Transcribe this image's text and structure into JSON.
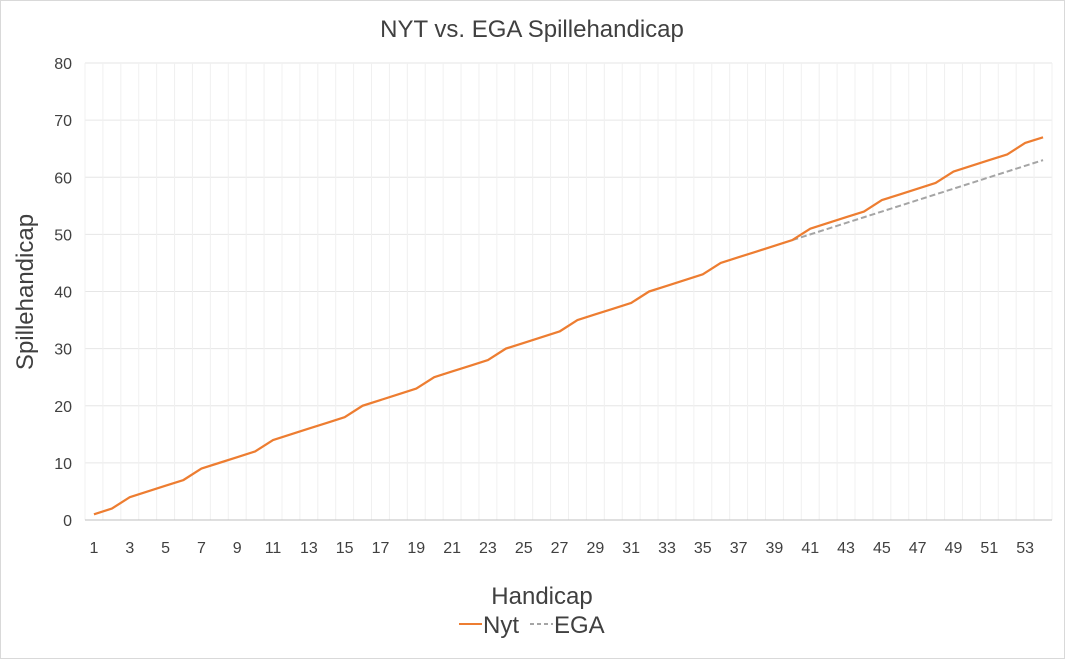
{
  "chart_data": {
    "type": "line",
    "title": "NYT vs. EGA Spillehandicap",
    "xlabel": "Handicap",
    "ylabel": "Spillehandicap",
    "ylim": [
      0,
      80
    ],
    "yticks": [
      0,
      10,
      20,
      30,
      40,
      50,
      60,
      70,
      80
    ],
    "x": [
      1,
      2,
      3,
      4,
      5,
      6,
      7,
      8,
      9,
      10,
      11,
      12,
      13,
      14,
      15,
      16,
      17,
      18,
      19,
      20,
      21,
      22,
      23,
      24,
      25,
      26,
      27,
      28,
      29,
      30,
      31,
      32,
      33,
      34,
      35,
      36,
      37,
      38,
      39,
      40,
      41,
      42,
      43,
      44,
      45,
      46,
      47,
      48,
      49,
      50,
      51,
      52,
      53,
      54
    ],
    "xtick_labels": [
      "1",
      "3",
      "5",
      "7",
      "9",
      "11",
      "13",
      "15",
      "17",
      "19",
      "21",
      "23",
      "25",
      "27",
      "29",
      "31",
      "33",
      "35",
      "37",
      "39",
      "41",
      "43",
      "45",
      "47",
      "49",
      "51",
      "53"
    ],
    "series": [
      {
        "name": "Nyt",
        "color": "#ED7D31",
        "style": "solid",
        "values": [
          1,
          2,
          4,
          5,
          6,
          7,
          9,
          10,
          11,
          12,
          14,
          15,
          16,
          17,
          18,
          20,
          21,
          22,
          23,
          25,
          26,
          27,
          28,
          30,
          31,
          32,
          33,
          35,
          36,
          37,
          38,
          40,
          41,
          42,
          43,
          45,
          46,
          47,
          48,
          49,
          51,
          52,
          53,
          54,
          56,
          57,
          58,
          59,
          61,
          62,
          63,
          64,
          66,
          67
        ]
      },
      {
        "name": "EGA",
        "color": "#A5A5A5",
        "style": "dashed",
        "values": [
          null,
          null,
          null,
          null,
          null,
          null,
          null,
          null,
          null,
          null,
          null,
          null,
          null,
          null,
          null,
          null,
          null,
          null,
          null,
          null,
          null,
          null,
          null,
          null,
          null,
          null,
          null,
          null,
          null,
          null,
          null,
          null,
          null,
          null,
          null,
          null,
          null,
          null,
          null,
          49,
          50,
          51,
          52,
          53,
          54,
          55,
          56,
          57,
          58,
          59,
          60,
          61,
          62,
          63
        ]
      }
    ],
    "grid": true,
    "legend_position": "bottom"
  }
}
